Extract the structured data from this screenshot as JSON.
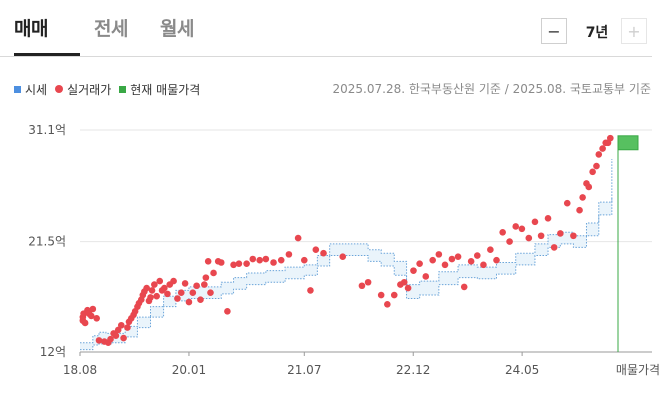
{
  "tabs": [
    {
      "label": "매매"
    },
    {
      "label": "전세"
    },
    {
      "label": "월세"
    }
  ],
  "active_tab": "매매",
  "period": {
    "minus": "−",
    "value": "7년",
    "plus": "+"
  },
  "legend": [
    {
      "label": "시세",
      "color": "#4d8fe0",
      "shape": "square"
    },
    {
      "label": "실거래가",
      "color": "#e8474f",
      "shape": "dot"
    },
    {
      "label": "현재 매물가격",
      "color": "#39a845",
      "shape": "square"
    }
  ],
  "source": "2025.07.28. 한국부동산원 기준 / 2025.08. 국토교통부 기준",
  "chart_data": {
    "type": "scatter",
    "y_unit": "억",
    "ylim": [
      12,
      31.1
    ],
    "yticks": [
      {
        "value": 12,
        "label": "12억"
      },
      {
        "value": 21.5,
        "label": "21.5억"
      },
      {
        "value": 31.1,
        "label": "31.1억"
      }
    ],
    "xticks": [
      {
        "value": 2018.583,
        "label": "18.08"
      },
      {
        "value": 2020.0,
        "label": "20.01"
      },
      {
        "value": 2021.5,
        "label": "21.07"
      },
      {
        "value": 2022.917,
        "label": "22.12"
      },
      {
        "value": 2024.333,
        "label": "24.05"
      }
    ],
    "xlim": [
      2018.583,
      2025.58
    ],
    "current_listing_label": "매물가격",
    "current_listing": {
      "x": 2025.58,
      "low": 29.4,
      "high": 30.6
    },
    "market_price_band": {
      "x": [
        2018.583,
        2018.75,
        2018.83,
        2018.92,
        2019.0,
        2019.17,
        2019.33,
        2019.5,
        2019.67,
        2019.83,
        2020.0,
        2020.25,
        2020.42,
        2020.58,
        2020.75,
        2021.0,
        2021.25,
        2021.5,
        2021.67,
        2021.83,
        2022.0,
        2022.17,
        2022.33,
        2022.5,
        2022.67,
        2022.83,
        2023.0,
        2023.25,
        2023.5,
        2023.75,
        2024.0,
        2024.25,
        2024.5,
        2024.67,
        2024.83,
        2025.0,
        2025.17,
        2025.33,
        2025.5
      ],
      "upper": [
        12.8,
        13.4,
        13.7,
        13.6,
        13.6,
        14.2,
        15.0,
        15.9,
        16.8,
        17.3,
        17.6,
        17.6,
        18.0,
        18.4,
        18.8,
        19.0,
        19.3,
        19.5,
        20.3,
        21.3,
        21.3,
        21.3,
        20.8,
        20.5,
        19.8,
        17.8,
        18.1,
        18.9,
        19.5,
        19.3,
        19.7,
        20.5,
        21.3,
        22.1,
        22.3,
        22.0,
        23.1,
        24.9,
        28.6
      ],
      "lower": [
        12.2,
        12.6,
        12.7,
        12.7,
        12.8,
        13.3,
        14.1,
        15.0,
        15.9,
        16.4,
        16.6,
        16.6,
        17.0,
        17.4,
        17.8,
        18.0,
        18.3,
        18.6,
        19.4,
        20.3,
        20.3,
        20.3,
        19.8,
        19.4,
        18.6,
        16.6,
        16.9,
        17.8,
        18.4,
        18.3,
        18.7,
        19.5,
        20.3,
        21.0,
        21.3,
        21.0,
        22.0,
        23.8,
        25.3
      ]
    },
    "transactions": {
      "x": [
        2018.62,
        2018.62,
        2018.63,
        2018.65,
        2018.68,
        2018.7,
        2018.73,
        2018.75,
        2018.8,
        2018.83,
        2018.9,
        2018.95,
        2018.98,
        2019.02,
        2019.05,
        2019.08,
        2019.12,
        2019.15,
        2019.2,
        2019.22,
        2019.25,
        2019.28,
        2019.3,
        2019.33,
        2019.35,
        2019.38,
        2019.4,
        2019.42,
        2019.45,
        2019.48,
        2019.5,
        2019.52,
        2019.55,
        2019.58,
        2019.62,
        2019.65,
        2019.68,
        2019.72,
        2019.75,
        2019.8,
        2019.85,
        2019.9,
        2019.95,
        2020.0,
        2020.05,
        2020.1,
        2020.15,
        2020.2,
        2020.22,
        2020.25,
        2020.28,
        2020.32,
        2020.38,
        2020.42,
        2020.5,
        2020.58,
        2020.65,
        2020.75,
        2020.83,
        2020.92,
        2021.0,
        2021.1,
        2021.2,
        2021.3,
        2021.42,
        2021.5,
        2021.58,
        2021.65,
        2021.75,
        2022.0,
        2022.25,
        2022.33,
        2022.5,
        2022.58,
        2022.67,
        2022.75,
        2022.8,
        2022.85,
        2022.92,
        2023.0,
        2023.08,
        2023.17,
        2023.25,
        2023.33,
        2023.42,
        2023.5,
        2023.58,
        2023.67,
        2023.75,
        2023.83,
        2023.92,
        2024.0,
        2024.08,
        2024.17,
        2024.25,
        2024.33,
        2024.42,
        2024.5,
        2024.58,
        2024.67,
        2024.75,
        2024.83,
        2024.92,
        2025.0,
        2025.08,
        2025.12,
        2025.17,
        2025.2,
        2025.25,
        2025.3,
        2025.33,
        2025.38,
        2025.42,
        2025.45,
        2025.48
      ],
      "y": [
        14.7,
        15.0,
        15.3,
        14.5,
        15.6,
        15.3,
        15.1,
        15.7,
        14.9,
        13.0,
        12.9,
        12.8,
        13.1,
        13.6,
        13.4,
        13.9,
        14.3,
        13.2,
        14.1,
        14.6,
        14.9,
        15.2,
        15.5,
        15.9,
        16.2,
        16.5,
        16.9,
        17.2,
        17.5,
        16.4,
        16.7,
        17.3,
        17.8,
        16.8,
        18.1,
        17.3,
        17.5,
        17.0,
        17.8,
        18.1,
        16.6,
        17.1,
        17.9,
        16.3,
        17.1,
        17.7,
        16.5,
        17.8,
        18.4,
        19.8,
        17.1,
        18.8,
        19.8,
        19.7,
        15.5,
        19.5,
        19.6,
        19.6,
        20.0,
        19.9,
        20.0,
        19.7,
        19.9,
        20.4,
        21.8,
        19.9,
        17.3,
        20.8,
        20.5,
        20.2,
        17.7,
        18.0,
        16.9,
        16.1,
        16.9,
        17.8,
        18.0,
        17.5,
        19.0,
        19.6,
        18.5,
        19.9,
        20.4,
        19.5,
        20.0,
        20.2,
        17.6,
        19.8,
        20.3,
        19.5,
        20.8,
        19.9,
        22.3,
        21.5,
        22.8,
        22.6,
        21.8,
        23.2,
        22.0,
        23.5,
        21.0,
        22.2,
        24.8,
        22.0,
        24.2,
        25.3,
        26.5,
        26.2,
        27.5,
        28.0,
        29.0,
        29.5,
        30.0,
        30.0,
        30.4
      ]
    }
  }
}
